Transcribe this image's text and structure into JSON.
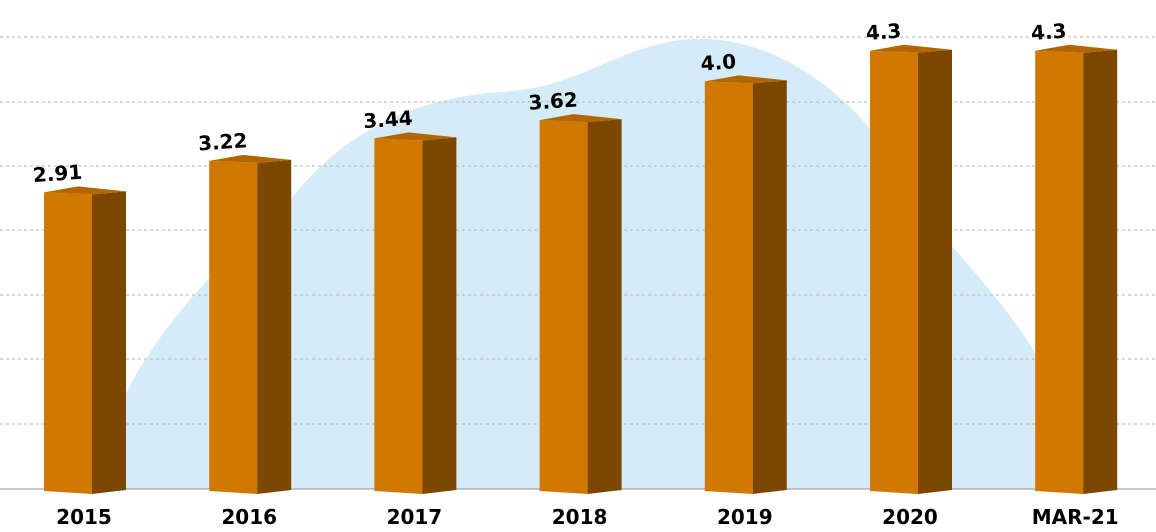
{
  "chart_data": {
    "type": "bar",
    "title": "",
    "xlabel": "",
    "ylabel": "",
    "categories": [
      "2015",
      "2016",
      "2017",
      "2018",
      "2019",
      "2020",
      "MAR-21"
    ],
    "series": [
      {
        "values": [
          2.91,
          3.22,
          3.44,
          3.62,
          4.0,
          4.3,
          4.3
        ]
      }
    ],
    "data_labels": [
      "2.91",
      "3.22",
      "3.44",
      "3.62",
      "4.0",
      "4.3",
      "4.3"
    ],
    "ylim": [
      0,
      4.7
    ],
    "grid": true,
    "legend": "none",
    "style": "3d-column"
  },
  "colors": {
    "bar_front": "#d07800",
    "bar_side": "#7c4700",
    "bar_top": "#b36600",
    "background_shape": "#d4ebf8",
    "gridline": "#b3b3b3"
  }
}
